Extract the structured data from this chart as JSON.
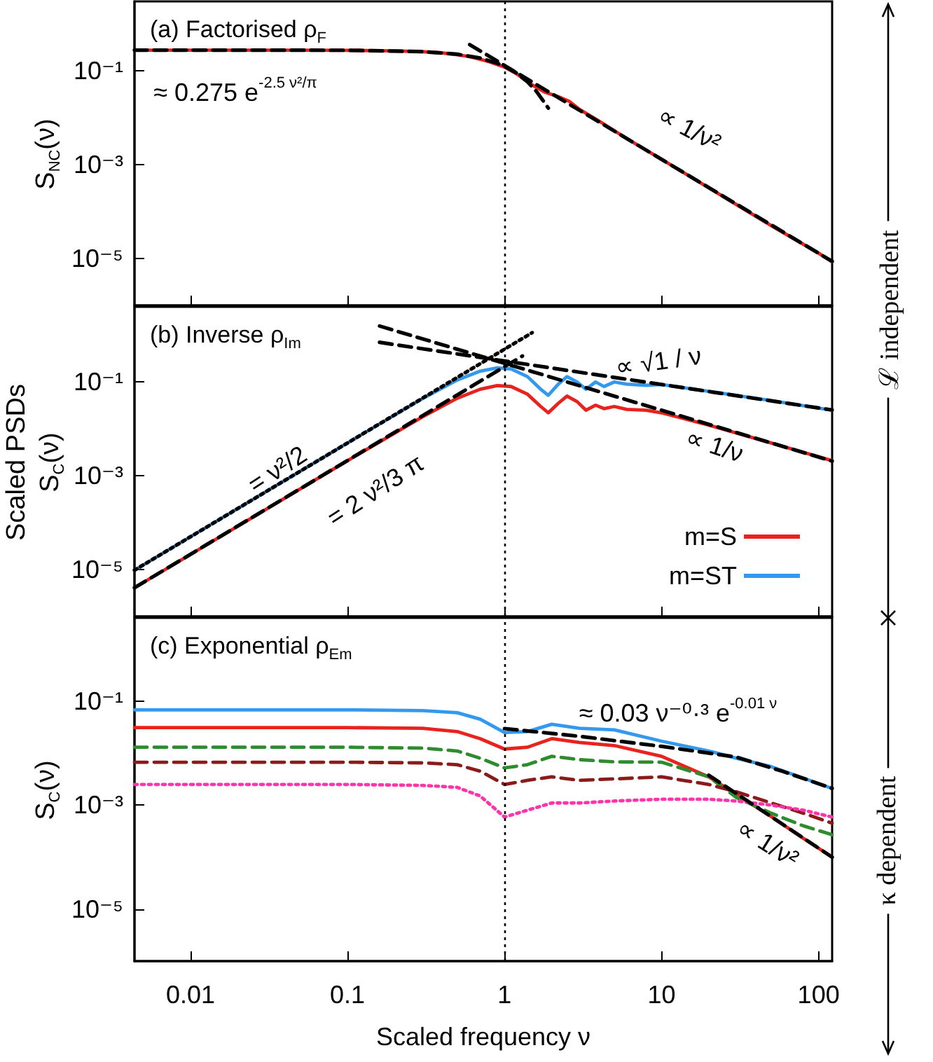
{
  "chart_data": [
    {
      "type": "line",
      "title": "(a) Factorised ρ$_{F}$",
      "ylabel": "S$_{NC}$(ν)",
      "log": "xy",
      "xlim": [
        0.0044,
        122
      ],
      "ylim": [
        1e-06,
        3
      ],
      "xticks": [
        0.01,
        0.1,
        1,
        10,
        100
      ],
      "yticks": [
        {
          "value": 0.1,
          "label": "10⁻¹"
        },
        {
          "value": 0.001,
          "label": "10⁻³"
        },
        {
          "value": 1e-05,
          "label": "10⁻⁵"
        }
      ],
      "tick_labels": "y",
      "marker": "none",
      "series": [
        {
          "x": [
            0.0044,
            0.01,
            0.05,
            0.1,
            0.2,
            0.3,
            0.4,
            0.5,
            0.6,
            0.7,
            0.8,
            0.9,
            1,
            1.2,
            1.5,
            1.8,
            2.2,
            2.6,
            3,
            4,
            6,
            10,
            20,
            50,
            100,
            122
          ],
          "values": [
            0.275,
            0.275,
            0.275,
            0.272,
            0.265,
            0.255,
            0.24,
            0.22,
            0.2,
            0.175,
            0.155,
            0.135,
            0.12,
            0.085,
            0.05,
            0.035,
            0.028,
            0.022,
            0.015,
            0.0085,
            0.0036,
            0.0013,
            0.00032,
            5e-05,
            1.3e-05,
            8.5e-06
          ],
          "color": "#e8231d",
          "line_style": "solid"
        },
        {
          "x": [
            0.0044,
            0.1,
            0.3,
            0.5,
            0.7,
            0.9,
            1,
            1.2,
            1.4,
            1.6,
            1.9
          ],
          "values": [
            0.275,
            0.273,
            0.256,
            0.225,
            0.187,
            0.144,
            0.124,
            0.088,
            0.058,
            0.036,
            0.016
          ],
          "color": "#000000",
          "line_style": "dashed"
        },
        {
          "x": [
            0.6,
            122
          ],
          "values": [
            0.36,
            8.7e-06
          ],
          "color": "#000000",
          "line_style": "dashed"
        }
      ],
      "ref_lines": [
        {
          "axis": "x",
          "value": 1,
          "color": "#000000",
          "line_style": "dotted"
        }
      ],
      "annotations": [
        "≈ 0.275 e$^{-2.5 ν²/π}$",
        "∝ 1/ν²",
        "ℒ independent"
      ]
    },
    {
      "type": "line",
      "title": "(b) Inverse ρ$_{Im}$",
      "ylabel": "Scaled PSDs\nS$_{C}$(ν)",
      "log": "xy",
      "xlim": [
        0.0044,
        122
      ],
      "ylim": [
        1e-06,
        4
      ],
      "xticks": [
        0.01,
        0.1,
        1,
        10,
        100
      ],
      "yticks": [
        {
          "value": 0.1,
          "label": "10⁻¹"
        },
        {
          "value": 0.001,
          "label": "10⁻³"
        },
        {
          "value": 1e-05,
          "label": "10⁻⁵"
        }
      ],
      "tick_labels": "y",
      "marker": "none",
      "legend": "bottom right",
      "series": [
        {
          "name": "m=S",
          "x": [
            0.0044,
            0.01,
            0.1,
            0.3,
            0.5,
            0.7,
            0.9,
            1.1,
            1.4,
            1.7,
            1.9,
            2.2,
            2.5,
            2.9,
            3.3,
            3.8,
            4.3,
            5,
            6,
            8,
            10,
            20,
            50,
            122
          ],
          "values": [
            4.1e-06,
            2.1e-05,
            0.0021,
            0.018,
            0.045,
            0.07,
            0.084,
            0.08,
            0.055,
            0.03,
            0.022,
            0.035,
            0.05,
            0.038,
            0.025,
            0.032,
            0.027,
            0.03,
            0.026,
            0.025,
            0.022,
            0.012,
            0.005,
            0.0021
          ],
          "color": "#e8231d",
          "line_style": "solid"
        },
        {
          "name": "m=ST",
          "x": [
            0.0044,
            0.01,
            0.1,
            0.3,
            0.5,
            0.7,
            0.9,
            1.1,
            1.4,
            1.7,
            1.9,
            2.2,
            2.5,
            2.9,
            3.3,
            3.8,
            4.3,
            5,
            6,
            8,
            10,
            20,
            50,
            122
          ],
          "values": [
            9.7e-06,
            5e-05,
            0.005,
            0.044,
            0.11,
            0.17,
            0.2,
            0.19,
            0.13,
            0.07,
            0.052,
            0.09,
            0.13,
            0.1,
            0.07,
            0.1,
            0.08,
            0.1,
            0.09,
            0.085,
            0.088,
            0.063,
            0.04,
            0.025
          ],
          "color": "#3399ee",
          "line_style": "solid"
        },
        {
          "x": [
            0.0044,
            1.5
          ],
          "values": [
            9.7e-06,
            1.125
          ],
          "color": "#000000",
          "line_style": "dotted"
        },
        {
          "x": [
            0.0044,
            1.3
          ],
          "values": [
            4.1e-06,
            0.358
          ],
          "color": "#000000",
          "line_style": "dashed"
        },
        {
          "x": [
            0.16,
            122
          ],
          "values": [
            1.56,
            0.00205
          ],
          "color": "#000000",
          "line_style": "dashed"
        },
        {
          "x": [
            0.16,
            122
          ],
          "values": [
            0.7,
            0.0253
          ],
          "color": "#000000",
          "line_style": "dashed"
        }
      ],
      "ref_lines": [
        {
          "axis": "x",
          "value": 1,
          "color": "#000000",
          "line_style": "dotted"
        }
      ],
      "annotations": [
        "∝ √1 / ν",
        "∝ 1/ν",
        "= ν²/2",
        "= 2 ν²/3 π"
      ]
    },
    {
      "type": "line",
      "title": "(c) Exponential ρ$_{Em}$",
      "ylabel": "S$_{C}$(ν)",
      "xlabel": "Scaled frequency ν",
      "log": "xy",
      "xlim": [
        0.0044,
        122
      ],
      "ylim": [
        1e-06,
        4
      ],
      "xticks": [
        0.01,
        0.1,
        1,
        10,
        100
      ],
      "yticks": [
        {
          "value": 0.1,
          "label": "10⁻¹"
        },
        {
          "value": 0.001,
          "label": "10⁻³"
        },
        {
          "value": 1e-05,
          "label": "10⁻⁵"
        }
      ],
      "marker": "none",
      "x": [
        0.0044,
        0.1,
        0.3,
        0.5,
        0.7,
        1,
        1.4,
        2,
        3,
        5,
        10,
        20,
        30,
        50,
        80,
        122
      ],
      "series": [
        {
          "values": [
            0.068,
            0.068,
            0.066,
            0.06,
            0.045,
            0.025,
            0.026,
            0.036,
            0.03,
            0.028,
            0.017,
            0.011,
            0.008,
            0.0055,
            0.0033,
            0.0021
          ],
          "color": "#3399ee",
          "line_style": "solid"
        },
        {
          "values": [
            0.031,
            0.031,
            0.03,
            0.026,
            0.019,
            0.012,
            0.013,
            0.019,
            0.016,
            0.014,
            0.0087,
            0.0035,
            0.0016,
            0.0006,
            0.00023,
            0.0001
          ],
          "color": "#e8231d",
          "line_style": "solid"
        },
        {
          "values": [
            0.013,
            0.013,
            0.0125,
            0.011,
            0.008,
            0.0052,
            0.006,
            0.0087,
            0.0075,
            0.0068,
            0.0067,
            0.0035,
            0.0014,
            0.0007,
            0.0004,
            0.00027
          ],
          "color": "#2e8b2e",
          "line_style": "dashed"
        },
        {
          "values": [
            0.0067,
            0.0067,
            0.0065,
            0.006,
            0.0045,
            0.0025,
            0.003,
            0.0035,
            0.003,
            0.0032,
            0.0035,
            0.0025,
            0.0018,
            0.0011,
            0.0007,
            0.00045
          ],
          "color": "#8b1a1a",
          "line_style": "dashed"
        },
        {
          "values": [
            0.0025,
            0.0025,
            0.0024,
            0.0022,
            0.0015,
            0.00059,
            0.0008,
            0.0011,
            0.0011,
            0.0012,
            0.0013,
            0.0013,
            0.0012,
            0.001,
            0.0008,
            0.00059
          ],
          "color": "#ff33aa",
          "line_style": "dotted"
        },
        {
          "x": [
            1,
            3,
            10,
            30,
            60,
            122
          ],
          "values": [
            0.0297,
            0.0211,
            0.0135,
            0.0084,
            0.0044,
            0.0021
          ],
          "color": "#000000",
          "line_style": "dashed"
        },
        {
          "x": [
            20,
            122
          ],
          "values": [
            0.00375,
            0.0001
          ],
          "color": "#000000",
          "line_style": "dashed"
        }
      ],
      "ref_lines": [
        {
          "axis": "x",
          "value": 1,
          "color": "#000000",
          "line_style": "dotted"
        }
      ],
      "annotations": [
        "≈ 0.03 ν⁻⁰·³ e$^{-0.01 ν}$",
        "∝ 1/ν²",
        "κ dependent"
      ]
    }
  ]
}
